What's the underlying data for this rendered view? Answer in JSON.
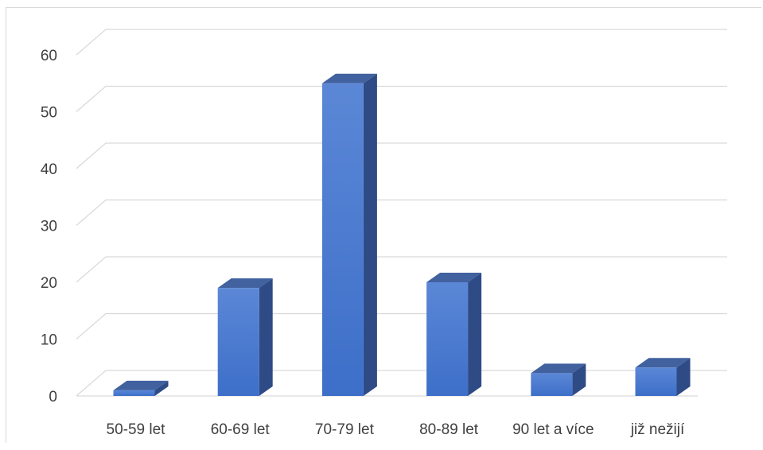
{
  "chart_data": {
    "type": "bar",
    "variant": "3d-column",
    "title": "",
    "xlabel": "",
    "ylabel": "",
    "categories": [
      "50-59 let",
      "60-69 let",
      "70-79 let",
      "80-89 let",
      "90 let a více",
      "již nežijí"
    ],
    "values": [
      1,
      19,
      55,
      20,
      4,
      5
    ],
    "ylim": [
      0,
      60
    ],
    "yticks": [
      0,
      10,
      20,
      30,
      40,
      50,
      60
    ],
    "grid": true,
    "legend": "none",
    "colors": {
      "bar_front": "#4472c4",
      "bar_front_light": "#5b87d6",
      "bar_top": "#41619f",
      "bar_side": "#2e4b86",
      "grid": "#d9d9d9",
      "text": "#404040"
    }
  }
}
